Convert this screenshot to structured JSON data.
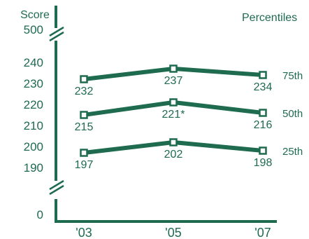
{
  "chart_data": {
    "type": "line",
    "title": "",
    "y_axis_title": "Score",
    "legend_title": "Percentiles",
    "categories": [
      "'03",
      "'05",
      "'07"
    ],
    "ylim": [
      190,
      240
    ],
    "axis_break": {
      "top_label": "500",
      "bottom_label": "0"
    },
    "y_ticks": [
      240,
      230,
      220,
      210,
      200,
      190
    ],
    "series": [
      {
        "name": "75th",
        "values": [
          232,
          237,
          234
        ],
        "labels": [
          "232",
          "237",
          "234"
        ]
      },
      {
        "name": "50th",
        "values": [
          215,
          221,
          216
        ],
        "labels": [
          "215",
          "221*",
          "216"
        ]
      },
      {
        "name": "25th",
        "values": [
          197,
          202,
          198
        ],
        "labels": [
          "197",
          "202",
          "198"
        ]
      }
    ],
    "grid": false,
    "legend_placement": "right",
    "colors": {
      "line": "#1e6b4f",
      "text": "#1e6b4f",
      "marker_fill": "#ffffff"
    }
  }
}
